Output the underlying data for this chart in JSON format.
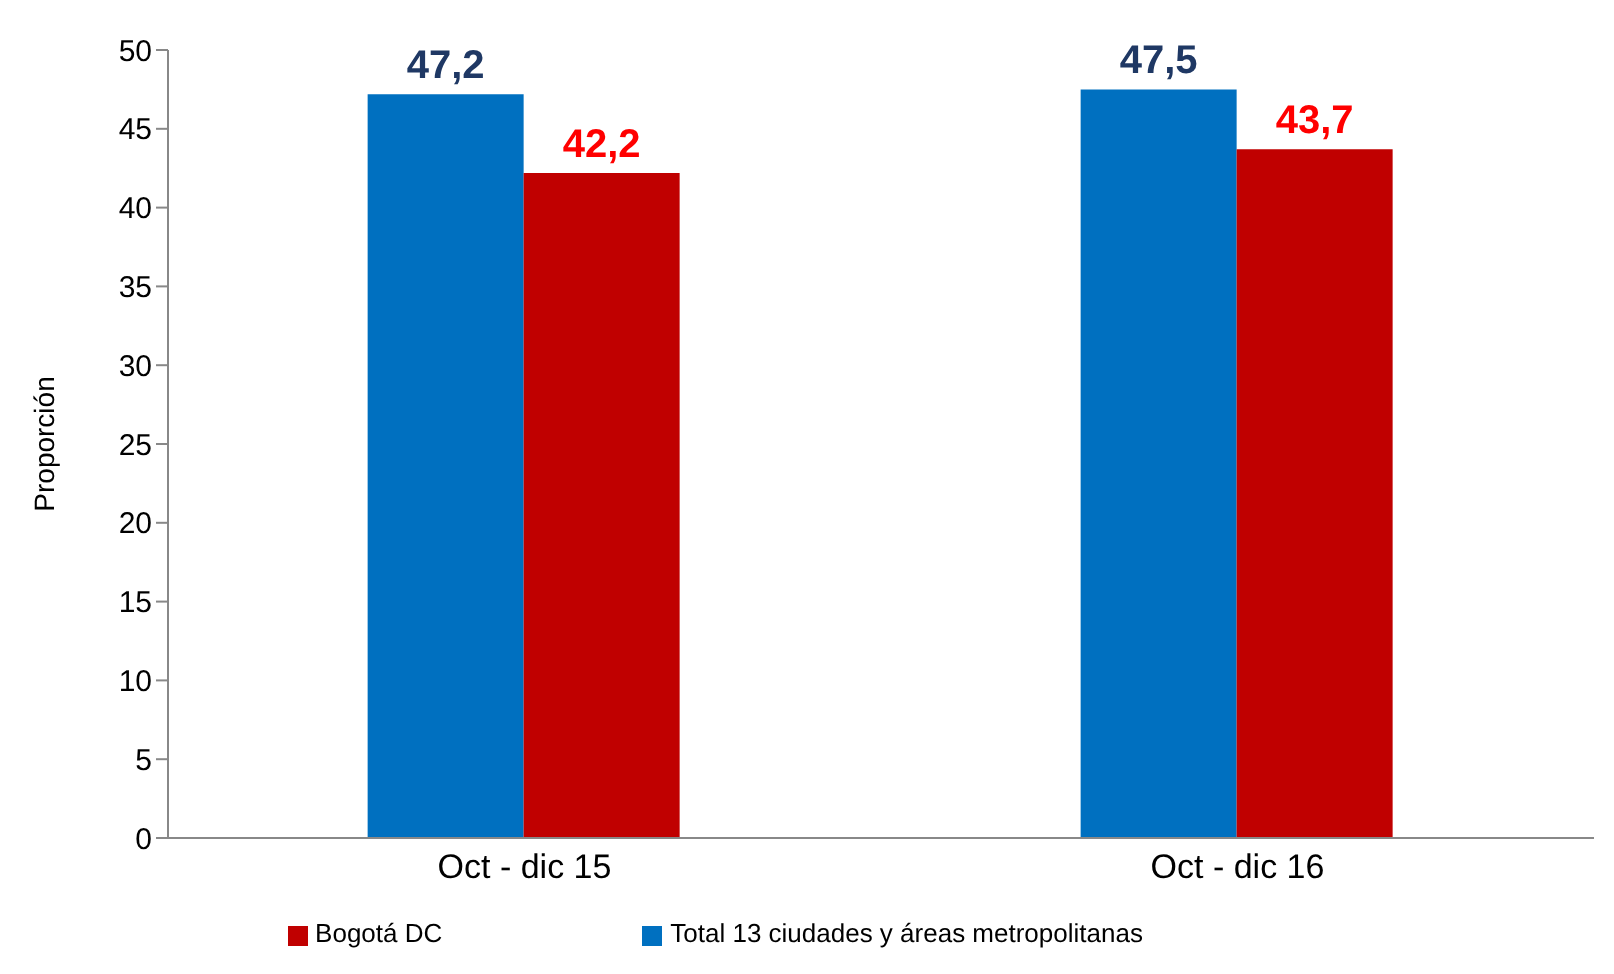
{
  "chart_data": {
    "type": "bar",
    "ylabel": "Proporción",
    "categories": [
      "Oct - dic 15",
      "Oct - dic 16"
    ],
    "series": [
      {
        "name": "Total 13 ciudades y áreas metropolitanas",
        "color": "#0070c0",
        "values": [
          47.2,
          47.5
        ],
        "value_labels": [
          "47,2",
          "47,5"
        ]
      },
      {
        "name": "Bogotá DC",
        "color": "#c00000",
        "values": [
          42.2,
          43.7
        ],
        "value_labels": [
          "42,2",
          "43,7"
        ]
      }
    ],
    "ylim": [
      0,
      50
    ],
    "yticks": [
      0,
      5,
      10,
      15,
      20,
      25,
      30,
      35,
      40,
      45,
      50
    ],
    "grid": false,
    "legend": "bottom"
  }
}
